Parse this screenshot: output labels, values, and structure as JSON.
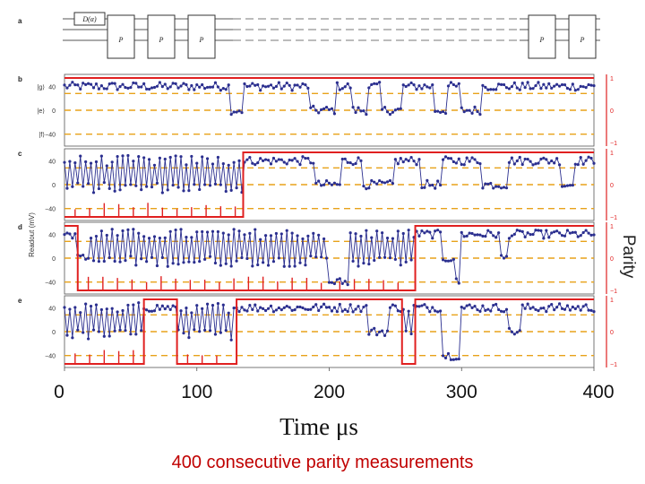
{
  "chart_data": {
    "type": "line",
    "caption": "400 consecutive parity measurements",
    "xlabel": "Time μs",
    "ylabel_left": "Readout (mV)",
    "ylabel_right": "Parity",
    "xlim": [
      0,
      400
    ],
    "x_ticks": [
      "0",
      "100",
      "200",
      "300",
      "400"
    ],
    "circuit": {
      "letter": "a",
      "gate_labels": [
        "D(α)",
        "P",
        "P",
        "P",
        "P",
        "P"
      ]
    },
    "readout_ylim": [
      -60,
      60
    ],
    "readout_ticks": [
      "40",
      "0",
      "−40"
    ],
    "parity_ylim": [
      -1,
      1
    ],
    "parity_ticks": [
      "1",
      "0",
      "−1"
    ],
    "state_labels": [
      "|g⟩",
      "|e⟩",
      "|f⟩"
    ],
    "state_levels": [
      40,
      0,
      -40
    ],
    "colors": {
      "readout": "#2b2f8f",
      "parity": "#e02020",
      "levels": "#e8a21a"
    },
    "panels": [
      {
        "letter": "b",
        "parity_segments": [
          [
            0,
            400,
            1
          ]
        ],
        "readout_segments": [
          [
            0,
            125,
            "g"
          ],
          [
            125,
            135,
            "e"
          ],
          [
            135,
            185,
            "g"
          ],
          [
            185,
            205,
            "e"
          ],
          [
            205,
            218,
            "g"
          ],
          [
            218,
            230,
            "e"
          ],
          [
            230,
            240,
            "g"
          ],
          [
            240,
            255,
            "e"
          ],
          [
            255,
            280,
            "g"
          ],
          [
            280,
            290,
            "e"
          ],
          [
            290,
            300,
            "g"
          ],
          [
            300,
            315,
            "e"
          ],
          [
            315,
            400,
            "g"
          ]
        ]
      },
      {
        "letter": "c",
        "parity_segments": [
          [
            0,
            135,
            -1
          ],
          [
            135,
            400,
            1
          ]
        ],
        "readout_segments": [
          [
            0,
            135,
            "alt"
          ],
          [
            135,
            190,
            "g"
          ],
          [
            190,
            210,
            "e"
          ],
          [
            210,
            225,
            "g"
          ],
          [
            225,
            250,
            "e"
          ],
          [
            250,
            270,
            "g"
          ],
          [
            270,
            285,
            "e"
          ],
          [
            285,
            315,
            "g"
          ],
          [
            315,
            335,
            "e"
          ],
          [
            335,
            375,
            "g"
          ],
          [
            375,
            385,
            "e"
          ],
          [
            385,
            400,
            "g"
          ]
        ]
      },
      {
        "letter": "d",
        "parity_segments": [
          [
            0,
            10,
            1
          ],
          [
            10,
            200,
            -1
          ],
          [
            200,
            265,
            -1
          ],
          [
            265,
            400,
            1
          ]
        ],
        "readout_segments": [
          [
            0,
            10,
            "g"
          ],
          [
            10,
            20,
            "e"
          ],
          [
            20,
            200,
            "alt"
          ],
          [
            200,
            215,
            "f"
          ],
          [
            215,
            265,
            "alt"
          ],
          [
            265,
            285,
            "g"
          ],
          [
            285,
            295,
            "e"
          ],
          [
            295,
            300,
            "f"
          ],
          [
            300,
            330,
            "g"
          ],
          [
            330,
            335,
            "e"
          ],
          [
            335,
            400,
            "g"
          ]
        ]
      },
      {
        "letter": "e",
        "parity_segments": [
          [
            0,
            60,
            -1
          ],
          [
            60,
            85,
            1
          ],
          [
            85,
            130,
            -1
          ],
          [
            130,
            255,
            1
          ],
          [
            255,
            265,
            -1
          ],
          [
            265,
            400,
            1
          ]
        ],
        "readout_segments": [
          [
            0,
            60,
            "alt"
          ],
          [
            60,
            85,
            "g"
          ],
          [
            85,
            130,
            "alt"
          ],
          [
            130,
            230,
            "g"
          ],
          [
            230,
            245,
            "e"
          ],
          [
            245,
            255,
            "g"
          ],
          [
            255,
            265,
            "alt"
          ],
          [
            265,
            285,
            "g"
          ],
          [
            285,
            300,
            "f"
          ],
          [
            300,
            335,
            "g"
          ],
          [
            335,
            345,
            "e"
          ],
          [
            345,
            400,
            "g"
          ]
        ]
      }
    ]
  }
}
